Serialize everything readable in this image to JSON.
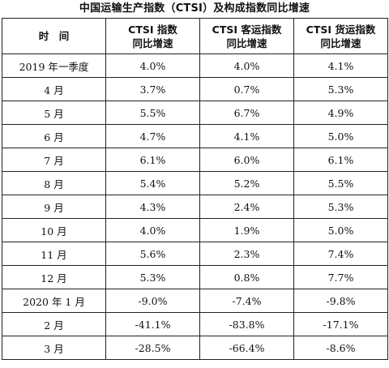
{
  "title": "中国运输生产指数（CTSI）及构成指数同比增速",
  "headers": {
    "time": "时　间",
    "ctsi": [
      "CTSI 指数",
      "同比增速"
    ],
    "passenger": [
      "CTSI 客运指数",
      "同比增速"
    ],
    "freight": [
      "CTSI 货运指数",
      "同比增速"
    ]
  },
  "rows": [
    {
      "period": "2019 年一季度",
      "ctsi": "4.0%",
      "passenger": "4.0%",
      "freight": "4.1%"
    },
    {
      "period": "4 月",
      "ctsi": "3.7%",
      "passenger": "0.7%",
      "freight": "5.3%"
    },
    {
      "period": "5 月",
      "ctsi": "5.5%",
      "passenger": "6.7%",
      "freight": "4.9%"
    },
    {
      "period": "6 月",
      "ctsi": "4.7%",
      "passenger": "4.1%",
      "freight": "5.0%"
    },
    {
      "period": "7 月",
      "ctsi": "6.1%",
      "passenger": "6.0%",
      "freight": "6.1%"
    },
    {
      "period": "8 月",
      "ctsi": "5.4%",
      "passenger": "5.2%",
      "freight": "5.5%"
    },
    {
      "period": "9 月",
      "ctsi": "4.3%",
      "passenger": "2.4%",
      "freight": "5.3%"
    },
    {
      "period": "10 月",
      "ctsi": "4.0%",
      "passenger": "1.9%",
      "freight": "5.0%"
    },
    {
      "period": "11 月",
      "ctsi": "5.6%",
      "passenger": "2.3%",
      "freight": "7.4%"
    },
    {
      "period": "12 月",
      "ctsi": "5.3%",
      "passenger": "0.8%",
      "freight": "7.7%"
    },
    {
      "period": "2020 年 1 月",
      "ctsi": "-9.0%",
      "passenger": "-7.4%",
      "freight": "-9.8%"
    },
    {
      "period": "2 月",
      "ctsi": "-41.1%",
      "passenger": "-83.8%",
      "freight": "-17.1%"
    },
    {
      "period": "3 月",
      "ctsi": "-28.5%",
      "passenger": "-66.4%",
      "freight": "-8.6%"
    }
  ]
}
